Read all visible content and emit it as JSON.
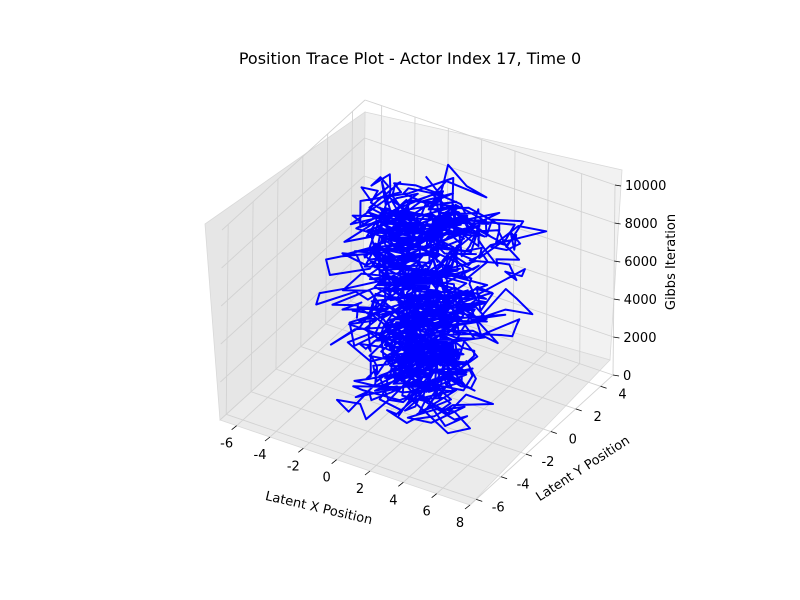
{
  "chart_data": {
    "type": "line",
    "projection": "3d",
    "title": "Position Trace Plot - Actor Index 17, Time 0",
    "xlabel": "Latent X Position",
    "ylabel": "Latent Y Position",
    "zlabel": "Gibbs Iteration",
    "xticks": [
      "-6",
      "-4",
      "-2",
      "0",
      "2",
      "4",
      "6",
      "8"
    ],
    "yticks": [
      "-6",
      "-4",
      "-2",
      "0",
      "2",
      "4"
    ],
    "zticks": [
      "0",
      "2000",
      "4000",
      "6000",
      "8000",
      "10000"
    ],
    "xlim": [
      -7,
      8
    ],
    "ylim": [
      -6.5,
      5
    ],
    "zlim": [
      0,
      10000
    ],
    "grid": true,
    "series": [
      {
        "color": "#0000ff",
        "iterations": 10000,
        "x_center": 0.5,
        "y_center": -0.5,
        "x_spread": 1.8,
        "y_spread": 1.7
      }
    ]
  }
}
